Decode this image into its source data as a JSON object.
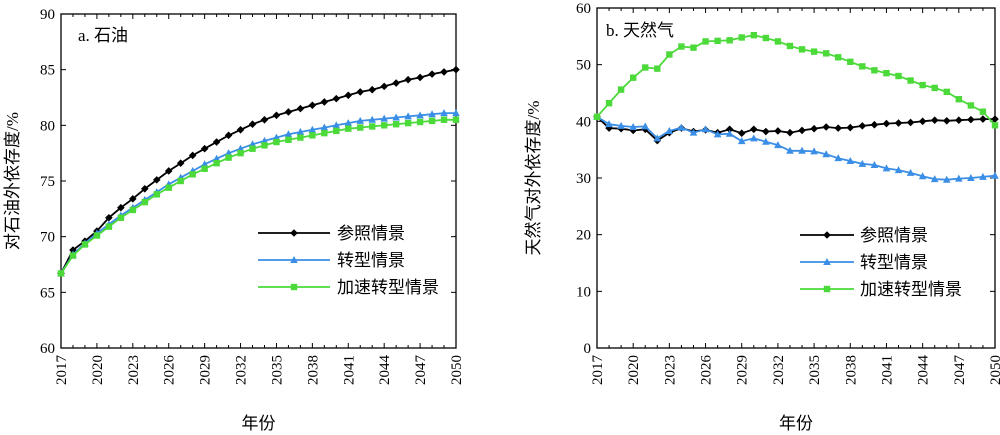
{
  "colors": {
    "参照情景": "#000000",
    "转型情景": "#3a8ee6",
    "加速转型情景": "#4cd93a"
  },
  "markers": {
    "参照情景": "diamond",
    "转型情景": "triangle",
    "加速转型情景": "square"
  },
  "chart_data": [
    {
      "type": "line",
      "title": "a. 石油",
      "xlabel": "年份",
      "ylabel": "对石油外依存度/%",
      "xlim": [
        2017,
        2050
      ],
      "ylim": [
        60,
        90
      ],
      "yticks": [
        60,
        65,
        70,
        75,
        80,
        85,
        90
      ],
      "xticks": [
        2017,
        2020,
        2023,
        2026,
        2029,
        2032,
        2035,
        2038,
        2041,
        2044,
        2047,
        2050
      ],
      "legend_position": "bottom-right",
      "grid": false,
      "x": [
        2017,
        2018,
        2019,
        2020,
        2021,
        2022,
        2023,
        2024,
        2025,
        2026,
        2027,
        2028,
        2029,
        2030,
        2031,
        2032,
        2033,
        2034,
        2035,
        2036,
        2037,
        2038,
        2039,
        2040,
        2041,
        2042,
        2043,
        2044,
        2045,
        2046,
        2047,
        2048,
        2049,
        2050
      ],
      "series": [
        {
          "name": "参照情景",
          "values": [
            66.7,
            68.8,
            69.6,
            70.5,
            71.7,
            72.6,
            73.4,
            74.3,
            75.1,
            75.9,
            76.6,
            77.3,
            77.9,
            78.5,
            79.1,
            79.6,
            80.1,
            80.5,
            80.9,
            81.2,
            81.5,
            81.8,
            82.1,
            82.4,
            82.7,
            83.0,
            83.2,
            83.5,
            83.8,
            84.1,
            84.3,
            84.6,
            84.8,
            85.0
          ]
        },
        {
          "name": "转型情景",
          "values": [
            66.7,
            68.4,
            69.4,
            70.3,
            71.1,
            71.9,
            72.6,
            73.3,
            74.0,
            74.7,
            75.3,
            75.9,
            76.5,
            77.0,
            77.5,
            77.9,
            78.3,
            78.6,
            78.9,
            79.2,
            79.4,
            79.6,
            79.8,
            80.0,
            80.2,
            80.4,
            80.5,
            80.6,
            80.7,
            80.8,
            80.9,
            81.0,
            81.1,
            81.1
          ]
        },
        {
          "name": "加速转型情景",
          "values": [
            66.7,
            68.3,
            69.3,
            70.1,
            70.9,
            71.7,
            72.4,
            73.1,
            73.8,
            74.4,
            75.0,
            75.6,
            76.1,
            76.6,
            77.1,
            77.5,
            77.9,
            78.2,
            78.5,
            78.7,
            78.9,
            79.1,
            79.3,
            79.5,
            79.7,
            79.8,
            79.9,
            80.0,
            80.1,
            80.2,
            80.3,
            80.4,
            80.5,
            80.5
          ]
        }
      ]
    },
    {
      "type": "line",
      "title": "b. 天然气",
      "xlabel": "年份",
      "ylabel": "天然气对外依存度/%",
      "xlim": [
        2017,
        2050
      ],
      "ylim": [
        0,
        60
      ],
      "yticks": [
        0,
        10,
        20,
        30,
        40,
        50,
        60
      ],
      "xticks": [
        2017,
        2020,
        2023,
        2026,
        2029,
        2032,
        2035,
        2038,
        2041,
        2044,
        2047,
        2050
      ],
      "legend_position": "bottom-right",
      "grid": false,
      "x": [
        2017,
        2018,
        2019,
        2020,
        2021,
        2022,
        2023,
        2024,
        2025,
        2026,
        2027,
        2028,
        2029,
        2030,
        2031,
        2032,
        2033,
        2034,
        2035,
        2036,
        2037,
        2038,
        2039,
        2040,
        2041,
        2042,
        2043,
        2044,
        2045,
        2046,
        2047,
        2048,
        2049,
        2050
      ],
      "series": [
        {
          "name": "参照情景",
          "values": [
            40.8,
            38.8,
            38.7,
            38.4,
            38.6,
            36.6,
            38.0,
            38.8,
            38.2,
            38.5,
            38.0,
            38.6,
            37.9,
            38.6,
            38.2,
            38.3,
            38.0,
            38.4,
            38.7,
            39.0,
            38.8,
            38.9,
            39.2,
            39.4,
            39.6,
            39.7,
            39.8,
            40.0,
            40.2,
            40.1,
            40.2,
            40.3,
            40.4,
            40.4
          ]
        },
        {
          "name": "转型情景",
          "values": [
            40.8,
            39.5,
            39.2,
            39.0,
            39.1,
            37.0,
            38.3,
            38.9,
            38.0,
            38.6,
            37.7,
            37.8,
            36.5,
            37.0,
            36.4,
            35.8,
            34.8,
            34.8,
            34.7,
            34.2,
            33.5,
            33.0,
            32.5,
            32.3,
            31.7,
            31.4,
            30.9,
            30.3,
            29.8,
            29.7,
            29.9,
            30.0,
            30.2,
            30.4
          ]
        },
        {
          "name": "加速转型情景",
          "values": [
            40.8,
            43.2,
            45.6,
            47.7,
            49.5,
            49.3,
            51.8,
            53.2,
            53.0,
            54.1,
            54.2,
            54.3,
            54.8,
            55.2,
            54.7,
            54.1,
            53.3,
            52.7,
            52.3,
            52.0,
            51.3,
            50.5,
            49.7,
            49.0,
            48.5,
            48.0,
            47.2,
            46.4,
            45.9,
            45.2,
            43.9,
            42.8,
            41.7,
            39.3
          ]
        }
      ]
    }
  ]
}
